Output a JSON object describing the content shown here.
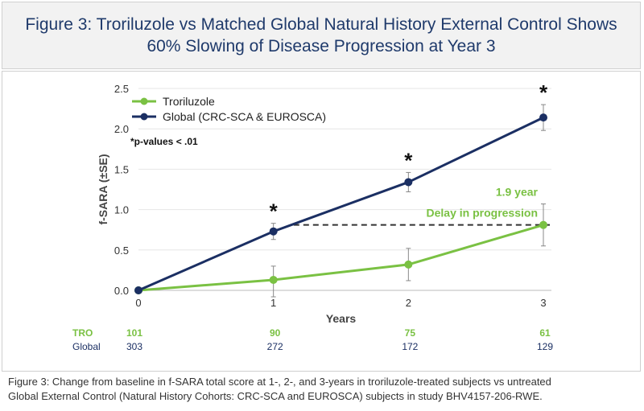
{
  "title_lines": [
    "Figure 3: Troriluzole vs Matched Global Natural History External Control Shows",
    "60% Slowing of Disease Progression at Year 3"
  ],
  "caption_lines": [
    "Figure 3: Change from baseline in f-SARA total score at 1-, 2-, and 3-years in troriluzole-treated subjects vs untreated",
    "Global External Control (Natural History Cohorts: CRC-SCA and EUROSCA) subjects in study BHV4157-206-RWE."
  ],
  "chart_data": {
    "type": "line",
    "xlabel": "Years",
    "ylabel": "f-SARA (±SE)",
    "x": [
      0,
      1,
      2,
      3
    ],
    "xticks": [
      "0",
      "1",
      "2",
      "3"
    ],
    "ylim": [
      0,
      2.5
    ],
    "yticks": [
      "0.0",
      "0.5",
      "1.0",
      "1.5",
      "2.0",
      "2.5"
    ],
    "grid": true,
    "legend_position": "top-left",
    "series": [
      {
        "name": "Troriluzole",
        "color": "#7ac143",
        "values": [
          0,
          0.13,
          0.32,
          0.81
        ],
        "se_low": [
          0,
          -0.08,
          0.12,
          0.55
        ],
        "se_high": [
          0,
          0.3,
          0.52,
          1.07
        ]
      },
      {
        "name": "Global (CRC-SCA & EUROSCA)",
        "color": "#1b2f63",
        "values": [
          0,
          0.73,
          1.34,
          2.14
        ],
        "se_low": [
          0,
          0.63,
          1.22,
          1.98
        ],
        "se_high": [
          0,
          0.83,
          1.46,
          2.3
        ]
      }
    ],
    "significance_marker": "*",
    "significant_x": [
      1,
      2,
      3
    ],
    "pvalue_note": "*p-values < .01",
    "annotation": {
      "lines": [
        "1.9 year",
        "Delay in progression"
      ],
      "reference_y": 0.81,
      "from_x": 1.15,
      "to_x": 3
    },
    "n_table": [
      {
        "label": "TRO",
        "color": "#7ac143",
        "values": [
          "101",
          "90",
          "75",
          "61"
        ]
      },
      {
        "label": "Global",
        "color": "#1b2f63",
        "values": [
          "303",
          "272",
          "172",
          "129"
        ]
      }
    ]
  }
}
